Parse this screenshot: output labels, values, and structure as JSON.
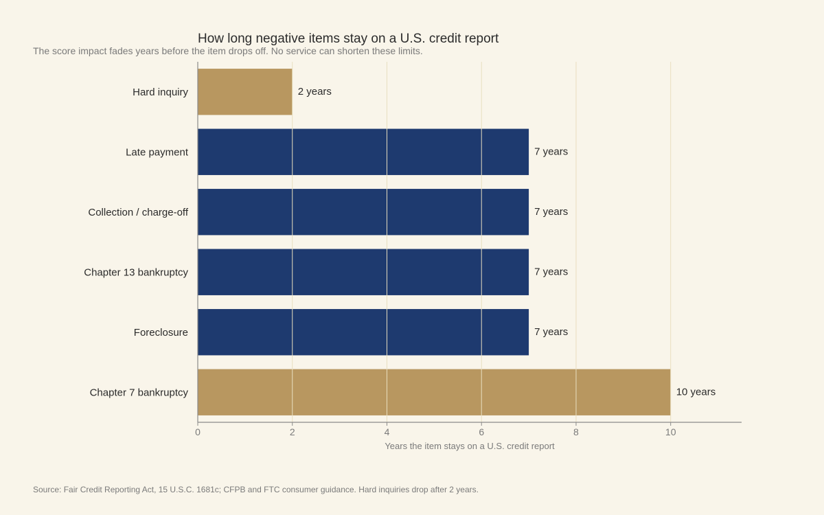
{
  "colors": {
    "background": "#f9f5ea",
    "accent_bar": "#b89760",
    "primary_bar": "#1e3a6f",
    "grid": "#e8dfc0",
    "axis": "#8a8a8a",
    "title_text": "#2b2b2b",
    "muted_text": "#7a7a7a"
  },
  "chart_data": {
    "type": "bar",
    "orientation": "horizontal",
    "title": "How long negative items stay on a U.S. credit report",
    "subtitle": "The score impact fades years before the item drops off. No service can shorten these limits.",
    "xlabel": "Years the item stays on a U.S. credit report",
    "ylabel": "",
    "xlim": [
      0,
      11.5
    ],
    "xticks": [
      0,
      2,
      4,
      6,
      8,
      10
    ],
    "grid": "vertical",
    "categories": [
      "Hard inquiry",
      "Late payment",
      "Collection / charge-off",
      "Chapter 13 bankruptcy",
      "Foreclosure",
      "Chapter 7 bankruptcy"
    ],
    "values": [
      2,
      7,
      7,
      7,
      7,
      10
    ],
    "data_labels": [
      "2 years",
      "7 years",
      "7 years",
      "7 years",
      "7 years",
      "10 years"
    ],
    "bar_colors": [
      "#b89760",
      "#1e3a6f",
      "#1e3a6f",
      "#1e3a6f",
      "#1e3a6f",
      "#b89760"
    ],
    "source": "Source: Fair Credit Reporting Act, 15 U.S.C. 1681c; CFPB and FTC consumer guidance. Hard inquiries drop after 2 years."
  }
}
